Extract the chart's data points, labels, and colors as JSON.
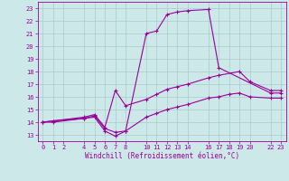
{
  "xlabel": "Windchill (Refroidissement éolien,°C)",
  "bg_color": "#cce8e8",
  "line_color": "#990099",
  "grid_color": "#aacccc",
  "yticks": [
    13,
    14,
    15,
    16,
    17,
    18,
    19,
    20,
    21,
    22,
    23
  ],
  "xticks": [
    0,
    1,
    2,
    4,
    5,
    6,
    7,
    8,
    10,
    11,
    12,
    13,
    14,
    16,
    17,
    18,
    19,
    20,
    22,
    23
  ],
  "ylim": [
    12.5,
    23.5
  ],
  "xlim": [
    -0.5,
    23.5
  ],
  "line1_x": [
    0,
    1,
    4,
    5,
    6,
    7,
    8,
    10,
    11,
    12,
    13,
    14,
    16,
    17,
    22,
    23
  ],
  "line1_y": [
    14,
    14.1,
    14.3,
    14.4,
    13.3,
    12.9,
    13.3,
    21.0,
    21.2,
    22.5,
    22.7,
    22.8,
    22.9,
    18.3,
    16.3,
    16.3
  ],
  "line2_x": [
    0,
    1,
    4,
    5,
    6,
    7,
    8,
    10,
    11,
    12,
    13,
    14,
    16,
    17,
    19,
    20,
    22,
    23
  ],
  "line2_y": [
    14,
    14.1,
    14.4,
    14.6,
    13.6,
    16.5,
    15.3,
    15.8,
    16.2,
    16.6,
    16.8,
    17.0,
    17.5,
    17.7,
    18.0,
    17.2,
    16.5,
    16.5
  ],
  "line3_x": [
    0,
    1,
    4,
    5,
    6,
    7,
    8,
    10,
    11,
    12,
    13,
    14,
    16,
    17,
    18,
    19,
    20,
    22,
    23
  ],
  "line3_y": [
    14,
    14.0,
    14.3,
    14.5,
    13.5,
    13.2,
    13.3,
    14.4,
    14.7,
    15.0,
    15.2,
    15.4,
    15.9,
    16.0,
    16.2,
    16.3,
    16.0,
    15.9,
    15.9
  ]
}
